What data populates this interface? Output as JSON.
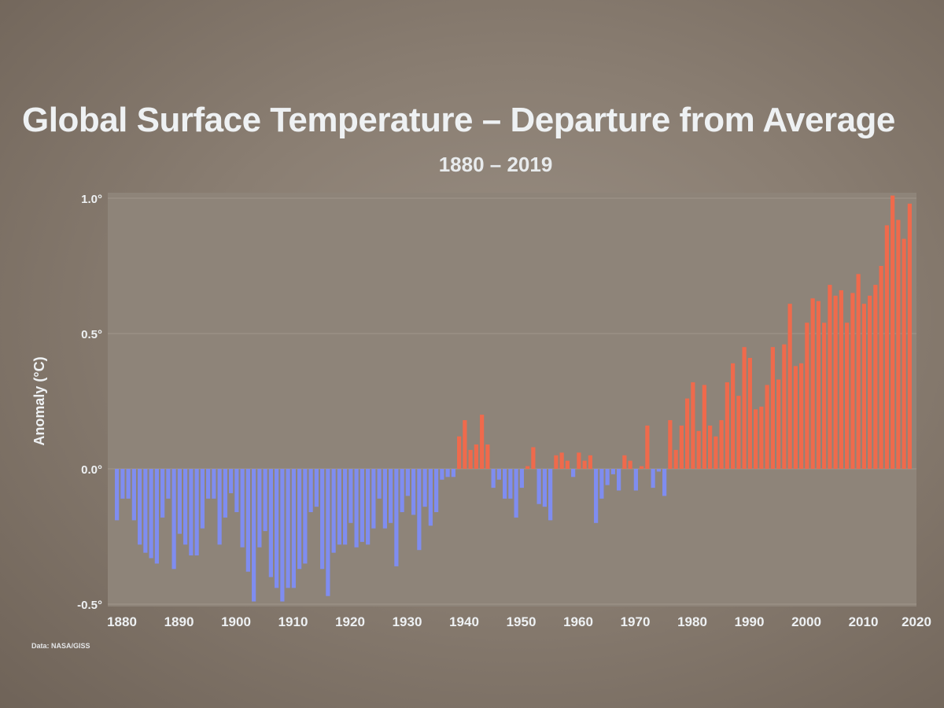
{
  "chart_data": {
    "type": "bar",
    "title": "Global Surface Temperature – Departure from Average",
    "subtitle": "1880 – 2019",
    "ylabel": "Anomaly (°C)",
    "xlabel": "",
    "ylim": [
      -0.5,
      1.0
    ],
    "xlim": [
      1880,
      2020
    ],
    "y_ticks": [
      "1.0°",
      "0.5°",
      "0.0°",
      "-0.5°"
    ],
    "x_ticks": [
      "1880",
      "1890",
      "1900",
      "1910",
      "1920",
      "1930",
      "1940",
      "1950",
      "1960",
      "1970",
      "1980",
      "1990",
      "2000",
      "2010",
      "2020"
    ],
    "grid": true,
    "source": "Data: NASA/GISS",
    "colors": {
      "positive": "#ef6a4c",
      "negative": "#7f8df0",
      "plot_background": "#8e8479",
      "gridline": "#a0968b",
      "text": "#eef1f3"
    },
    "years": [
      1880,
      1881,
      1882,
      1883,
      1884,
      1885,
      1886,
      1887,
      1888,
      1889,
      1890,
      1891,
      1892,
      1893,
      1894,
      1895,
      1896,
      1897,
      1898,
      1899,
      1900,
      1901,
      1902,
      1903,
      1904,
      1905,
      1906,
      1907,
      1908,
      1909,
      1910,
      1911,
      1912,
      1913,
      1914,
      1915,
      1916,
      1917,
      1918,
      1919,
      1920,
      1921,
      1922,
      1923,
      1924,
      1925,
      1926,
      1927,
      1928,
      1929,
      1930,
      1931,
      1932,
      1933,
      1934,
      1935,
      1936,
      1937,
      1938,
      1939,
      1940,
      1941,
      1942,
      1943,
      1944,
      1945,
      1946,
      1947,
      1948,
      1949,
      1950,
      1951,
      1952,
      1953,
      1954,
      1955,
      1956,
      1957,
      1958,
      1959,
      1960,
      1961,
      1962,
      1963,
      1964,
      1965,
      1966,
      1967,
      1968,
      1969,
      1970,
      1971,
      1972,
      1973,
      1974,
      1975,
      1976,
      1977,
      1978,
      1979,
      1980,
      1981,
      1982,
      1983,
      1984,
      1985,
      1986,
      1987,
      1988,
      1989,
      1990,
      1991,
      1992,
      1993,
      1994,
      1995,
      1996,
      1997,
      1998,
      1999,
      2000,
      2001,
      2002,
      2003,
      2004,
      2005,
      2006,
      2007,
      2008,
      2009,
      2010,
      2011,
      2012,
      2013,
      2014,
      2015,
      2016,
      2017,
      2018,
      2019
    ],
    "values": [
      -0.19,
      -0.11,
      -0.11,
      -0.19,
      -0.28,
      -0.31,
      -0.33,
      -0.35,
      -0.18,
      -0.11,
      -0.37,
      -0.24,
      -0.28,
      -0.32,
      -0.32,
      -0.22,
      -0.11,
      -0.11,
      -0.28,
      -0.18,
      -0.09,
      -0.16,
      -0.29,
      -0.38,
      -0.49,
      -0.29,
      -0.23,
      -0.4,
      -0.44,
      -0.49,
      -0.44,
      -0.44,
      -0.37,
      -0.35,
      -0.16,
      -0.14,
      -0.37,
      -0.47,
      -0.31,
      -0.28,
      -0.28,
      -0.2,
      -0.29,
      -0.27,
      -0.28,
      -0.22,
      -0.11,
      -0.22,
      -0.2,
      -0.36,
      -0.16,
      -0.1,
      -0.17,
      -0.3,
      -0.14,
      -0.21,
      -0.16,
      -0.04,
      -0.03,
      -0.03,
      0.12,
      0.18,
      0.07,
      0.09,
      0.2,
      0.09,
      -0.07,
      -0.04,
      -0.11,
      -0.11,
      -0.18,
      -0.07,
      0.01,
      0.08,
      -0.13,
      -0.14,
      -0.19,
      0.05,
      0.06,
      0.03,
      -0.03,
      0.06,
      0.03,
      0.05,
      -0.2,
      -0.11,
      -0.06,
      -0.02,
      -0.08,
      0.05,
      0.03,
      -0.08,
      0.01,
      0.16,
      -0.07,
      -0.01,
      -0.1,
      0.18,
      0.07,
      0.16,
      0.26,
      0.32,
      0.14,
      0.31,
      0.16,
      0.12,
      0.18,
      0.32,
      0.39,
      0.27,
      0.45,
      0.41,
      0.22,
      0.23,
      0.31,
      0.45,
      0.33,
      0.46,
      0.61,
      0.38,
      0.39,
      0.54,
      0.63,
      0.62,
      0.54,
      0.68,
      0.64,
      0.66,
      0.54,
      0.65,
      0.72,
      0.61,
      0.64,
      0.68,
      0.75,
      0.9,
      1.01,
      0.92,
      0.85,
      0.98
    ]
  }
}
